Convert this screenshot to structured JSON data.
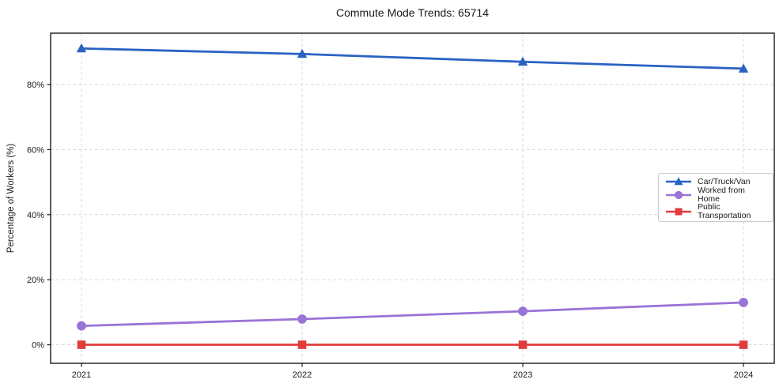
{
  "chart_data": {
    "type": "line",
    "title": "Commute Mode Trends: 65714",
    "xlabel": "",
    "ylabel": "Percentage of Workers (%)",
    "categories": [
      "2021",
      "2022",
      "2023",
      "2024"
    ],
    "series": [
      {
        "name": "Car/Truck/Van",
        "marker": "triangle",
        "color": "#2a62c2",
        "values": [
          91.1,
          89.4,
          87.0,
          84.9
        ]
      },
      {
        "name": "Worked from Home",
        "marker": "circle",
        "color": "#9973d8",
        "values": [
          5.8,
          7.9,
          10.3,
          13.0
        ]
      },
      {
        "name": "Public Transportation",
        "marker": "square",
        "color": "#e13c3c",
        "values": [
          0.0,
          0.0,
          0.0,
          0.0
        ]
      }
    ],
    "y_ticks": {
      "values": [
        0,
        20,
        40,
        60,
        80
      ],
      "labels": [
        "0%",
        "20%",
        "40%",
        "60%",
        "80%"
      ]
    },
    "ylim": [
      -5.7,
      95.8
    ],
    "grid": true,
    "grid_style": "dashed",
    "legend_position": "center-right",
    "colors": {
      "background": "#ffffff",
      "grid": "#d9d9d9",
      "axis": "#1a1a1a",
      "text": "#1a1a1a"
    }
  }
}
